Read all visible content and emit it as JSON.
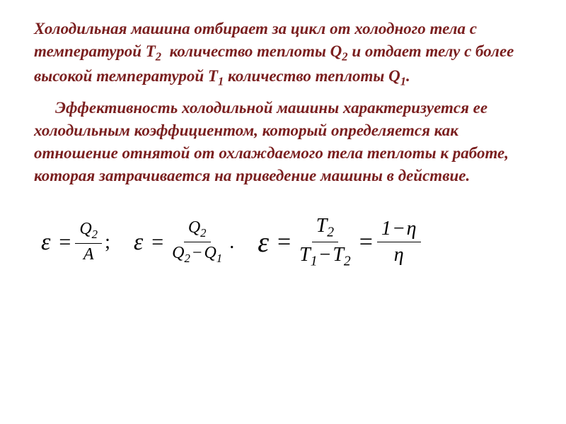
{
  "paragraph1": {
    "text_parts": [
      "Холодильная машина отбирает за цикл от холодного тела с температурой T",
      "2",
      "  количество теплоты Q",
      "2",
      " и отдает телу с более высокой температурой T",
      "1",
      " количество теплоты Q",
      "1",
      "."
    ]
  },
  "paragraph2": {
    "text": "Эффективность холодильной машины характеризуется ее холодильным коэффициентом, который определяется как отношение отнятой от охлаждаемого тела теплоты к работе, которая затрачивается на приведение машины в действие."
  },
  "formulas": {
    "f1": {
      "num": "Q",
      "num_sub": "2",
      "den": "A"
    },
    "f2": {
      "num": "Q",
      "num_sub": "2",
      "den_a": "Q",
      "den_a_sub": "2",
      "den_b": "Q",
      "den_b_sub": "1"
    },
    "f3": {
      "num_a": "T",
      "num_a_sub": "2",
      "den_a": "T",
      "den_a_sub": "1",
      "den_b": "T",
      "den_b_sub": "2",
      "num2": "1",
      "eta": "η"
    }
  },
  "styling": {
    "text_color": "#7a1f1f",
    "formula_color": "#000000",
    "background_color": "#ffffff",
    "font_family": "Times New Roman",
    "paragraph_fontsize": 23,
    "formula_fontsize": 24,
    "formula_big_fontsize": 28,
    "epsilon_fontsize": 34,
    "epsilon_big_fontsize": 40
  }
}
